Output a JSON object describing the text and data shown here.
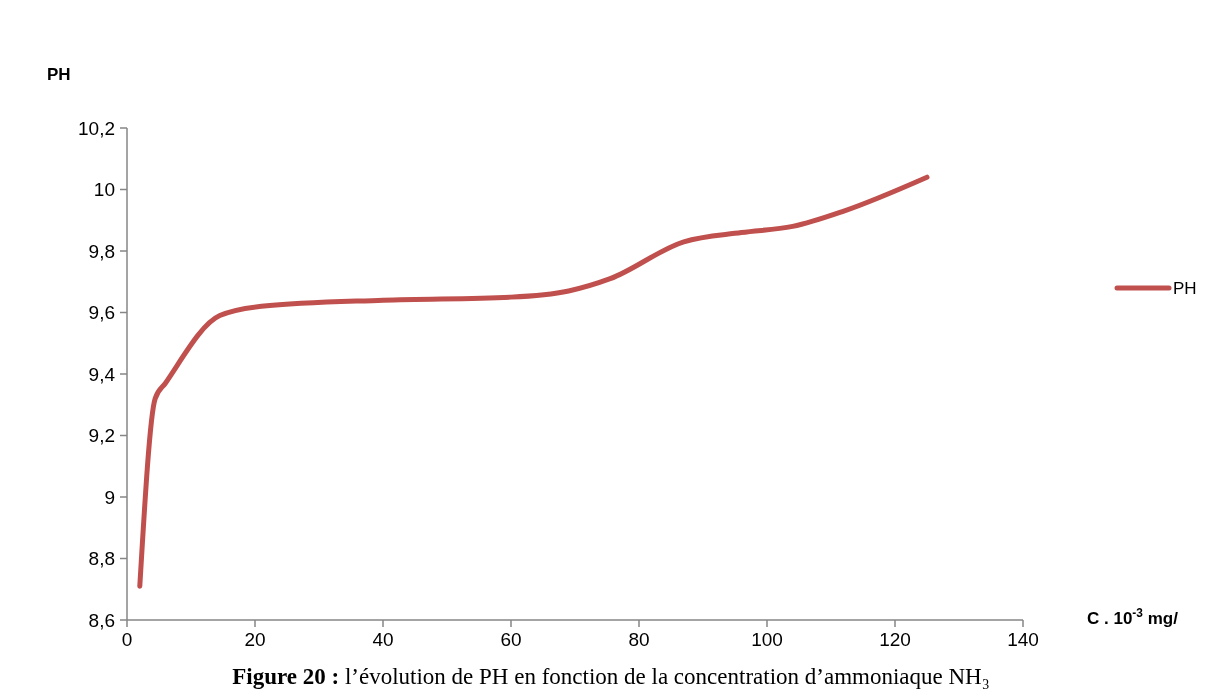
{
  "chart_data": {
    "type": "line",
    "title": "Figure 20 : l’évolution de PH en fonction de la concentration d’ammoniaque NH₃",
    "xlabel": "C . 10$^{-3}$ mg/",
    "ylabel": "PH",
    "x": [
      2,
      4.4,
      6,
      14.5,
      21,
      40,
      60,
      69,
      75.5,
      87,
      96,
      104,
      112,
      125
    ],
    "series": [
      {
        "name": "PH",
        "color": "#c0504d",
        "values": [
          8.71,
          9.32,
          9.37,
          9.59,
          9.62,
          9.64,
          9.65,
          9.67,
          9.71,
          9.83,
          9.86,
          9.88,
          9.93,
          10.04
        ]
      }
    ],
    "xlim": [
      0,
      140
    ],
    "xticks": [
      0,
      20,
      40,
      60,
      80,
      100,
      120,
      140
    ],
    "ylim": [
      8.6,
      10.2
    ],
    "yticks": [
      {
        "value": 8.6,
        "label": "8,6"
      },
      {
        "value": 8.8,
        "label": "8,8"
      },
      {
        "value": 9,
        "label": "9"
      },
      {
        "value": 9.2,
        "label": "9,2"
      },
      {
        "value": 9.4,
        "label": "9,4"
      },
      {
        "value": 9.6,
        "label": "9,6"
      },
      {
        "value": 9.8,
        "label": "9,8"
      },
      {
        "value": 10,
        "label": "10"
      },
      {
        "value": 10.2,
        "label": "10,2"
      }
    ],
    "grid": false,
    "legend": "right",
    "marker": "none",
    "line_style": "solid"
  }
}
